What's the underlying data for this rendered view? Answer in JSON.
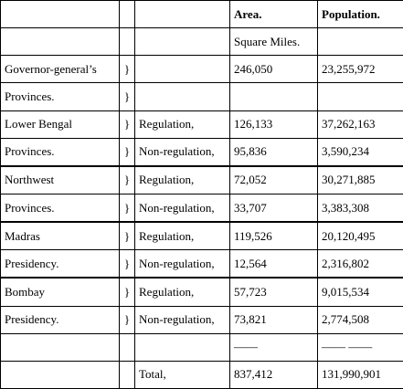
{
  "header": {
    "area": "Area.",
    "population": "Population.",
    "area_unit": "Square Miles."
  },
  "rows": [
    {
      "name": "Governor-general’s",
      "brace": "}",
      "type": "",
      "area": "246,050",
      "population": "23,255,972"
    },
    {
      "name": "Provinces.",
      "brace": "}",
      "type": "",
      "area": "",
      "population": ""
    },
    {
      "name": "Lower Bengal",
      "brace": "}",
      "type": "Regulation,",
      "area": "126,133",
      "population": "37,262,163"
    },
    {
      "name": "Provinces.",
      "brace": "}",
      "type": "Non-regulation,",
      "area": "95,836",
      "population": "3,590,234"
    },
    {
      "name": "Northwest",
      "brace": "}",
      "type": "Regulation,",
      "area": "72,052",
      "population": "30,271,885"
    },
    {
      "name": "Provinces.",
      "brace": "}",
      "type": "Non-regulation,",
      "area": "33,707",
      "population": "3,383,308"
    },
    {
      "name": "Madras",
      "brace": "}",
      "type": "Regulation,",
      "area": "119,526",
      "population": "20,120,495"
    },
    {
      "name": "Presidency.",
      "brace": "}",
      "type": "Non-regulation,",
      "area": "12,564",
      "population": "2,316,802"
    },
    {
      "name": "Bombay",
      "brace": "}",
      "type": "Regulation,",
      "area": "57,723",
      "population": "9,015,534"
    },
    {
      "name": "Presidency.",
      "brace": "}",
      "type": "Non-regulation,",
      "area": "73,821",
      "population": "2,774,508"
    }
  ],
  "rule_row": {
    "area": "——",
    "population": "—— ——"
  },
  "total": {
    "label": "Total,",
    "area": "837,412",
    "population": "131,990,901"
  }
}
